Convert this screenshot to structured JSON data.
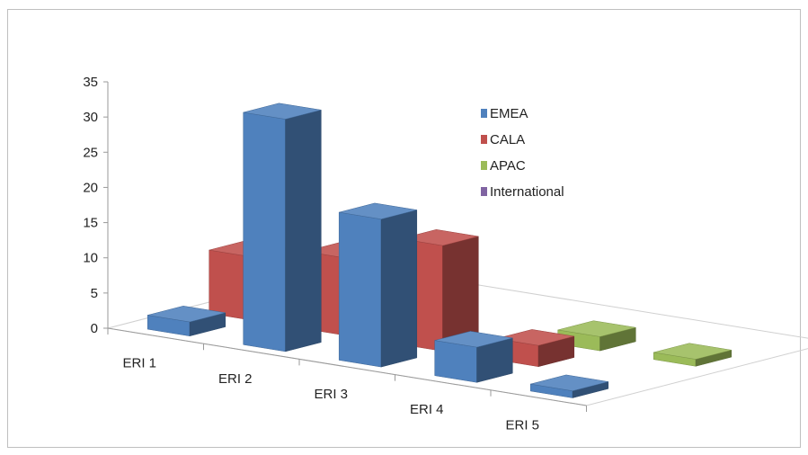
{
  "chart_data": {
    "type": "bar",
    "subtype": "3d-column",
    "categories": [
      "ERI 1",
      "ERI 2",
      "ERI 3",
      "ERI 4",
      "ERI 5"
    ],
    "series": [
      {
        "name": "EMEA",
        "values": [
          2,
          33,
          21,
          5,
          1
        ],
        "color": "#4f81bd"
      },
      {
        "name": "CALA",
        "values": [
          9,
          11,
          15,
          3,
          0
        ],
        "color": "#c0504d"
      },
      {
        "name": "APAC",
        "values": [
          0,
          0,
          0,
          2,
          1
        ],
        "color": "#9bbb59"
      },
      {
        "name": "International",
        "values": [
          0,
          0,
          0,
          0,
          0
        ],
        "color": "#8064a2"
      }
    ],
    "ylim": [
      0,
      35
    ],
    "yticks": [
      0,
      5,
      10,
      15,
      20,
      25,
      30,
      35
    ],
    "legend_position": "right",
    "grid": false
  }
}
